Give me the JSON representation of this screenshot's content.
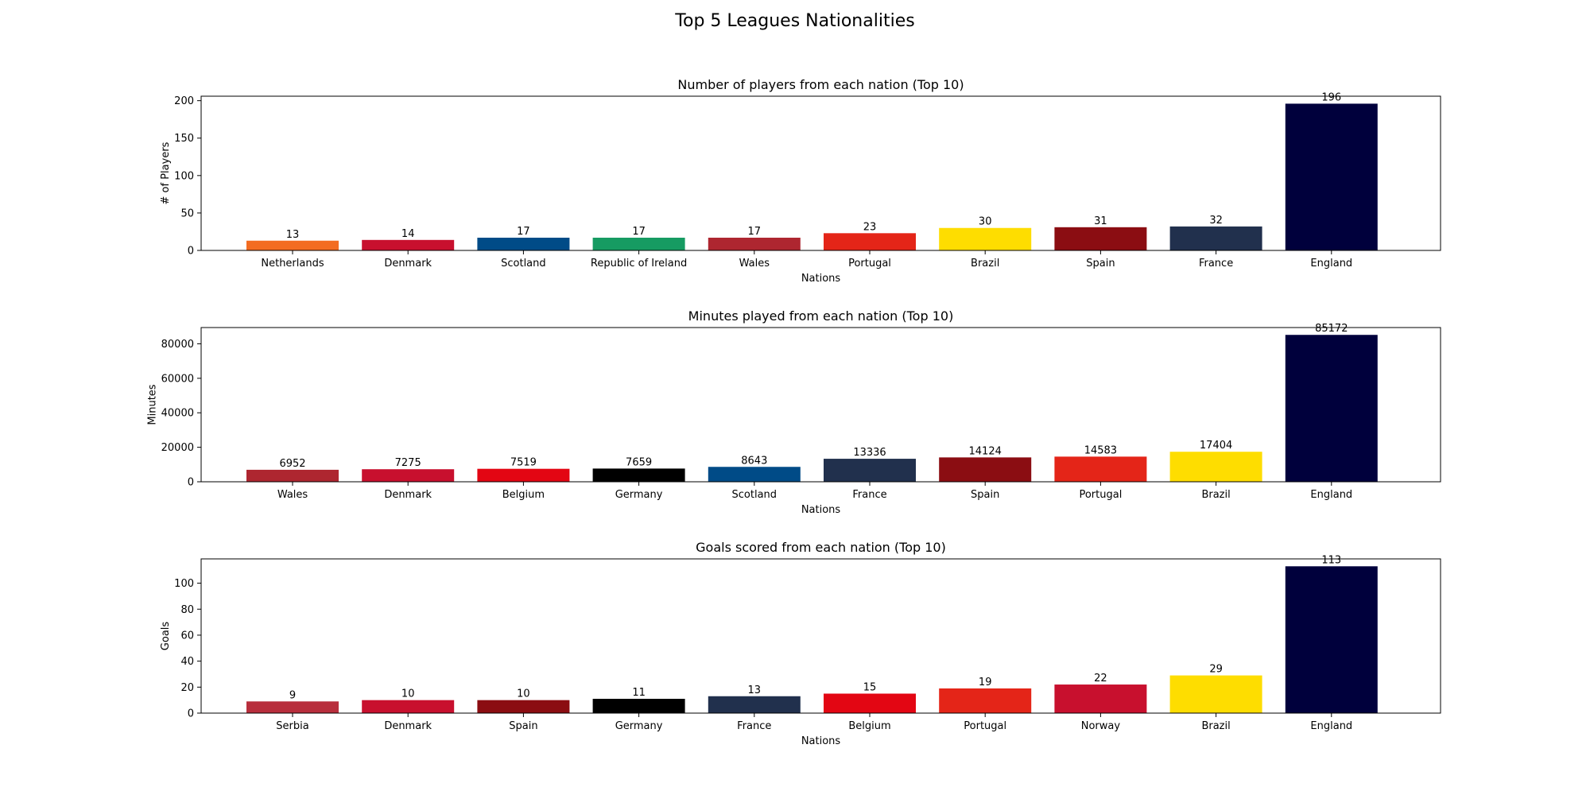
{
  "figure": {
    "title": "Top 5 Leagues Nationalities"
  },
  "chart_data": [
    {
      "type": "bar",
      "title": "Number of players from each nation (Top 10)",
      "xlabel": "Nations",
      "ylabel": "# of Players",
      "ylim": [
        0,
        206
      ],
      "yticks": [
        0,
        50,
        100,
        150,
        200
      ],
      "grid": false,
      "categories": [
        "Netherlands",
        "Denmark",
        "Scotland",
        "Republic of Ireland",
        "Wales",
        "Portugal",
        "Brazil",
        "Spain",
        "France",
        "England"
      ],
      "values": [
        13,
        14,
        17,
        17,
        17,
        23,
        30,
        31,
        32,
        196
      ],
      "colors": [
        "#F36C21",
        "#C8102E",
        "#004B87",
        "#169B62",
        "#AE2630",
        "#E42518",
        "#FEDD00",
        "#8B0D12",
        "#21304D",
        "#00003C"
      ]
    },
    {
      "type": "bar",
      "title": "Minutes played from each nation (Top 10)",
      "xlabel": "Nations",
      "ylabel": "Minutes",
      "ylim": [
        0,
        89430
      ],
      "yticks": [
        0,
        20000,
        40000,
        60000,
        80000
      ],
      "grid": false,
      "categories": [
        "Wales",
        "Denmark",
        "Belgium",
        "Germany",
        "Scotland",
        "France",
        "Spain",
        "Portugal",
        "Brazil",
        "England"
      ],
      "values": [
        6952,
        7275,
        7519,
        7659,
        8643,
        13336,
        14124,
        14583,
        17404,
        85172
      ],
      "colors": [
        "#AE2630",
        "#C8102E",
        "#E30613",
        "#000000",
        "#004B87",
        "#21304D",
        "#8B0D12",
        "#E42518",
        "#FEDD00",
        "#00003C"
      ]
    },
    {
      "type": "bar",
      "title": "Goals scored from each nation (Top 10)",
      "xlabel": "Nations",
      "ylabel": "Goals",
      "ylim": [
        0,
        118.7
      ],
      "yticks": [
        0,
        20,
        40,
        60,
        80,
        100
      ],
      "grid": false,
      "categories": [
        "Serbia",
        "Denmark",
        "Spain",
        "Germany",
        "France",
        "Belgium",
        "Portugal",
        "Norway",
        "Brazil",
        "England"
      ],
      "values": [
        9,
        10,
        10,
        11,
        13,
        15,
        19,
        22,
        29,
        113
      ],
      "colors": [
        "#B82E3C",
        "#C8102E",
        "#8B0D12",
        "#000000",
        "#21304D",
        "#E30613",
        "#E42518",
        "#C8102E",
        "#FEDD00",
        "#00003C"
      ]
    }
  ]
}
